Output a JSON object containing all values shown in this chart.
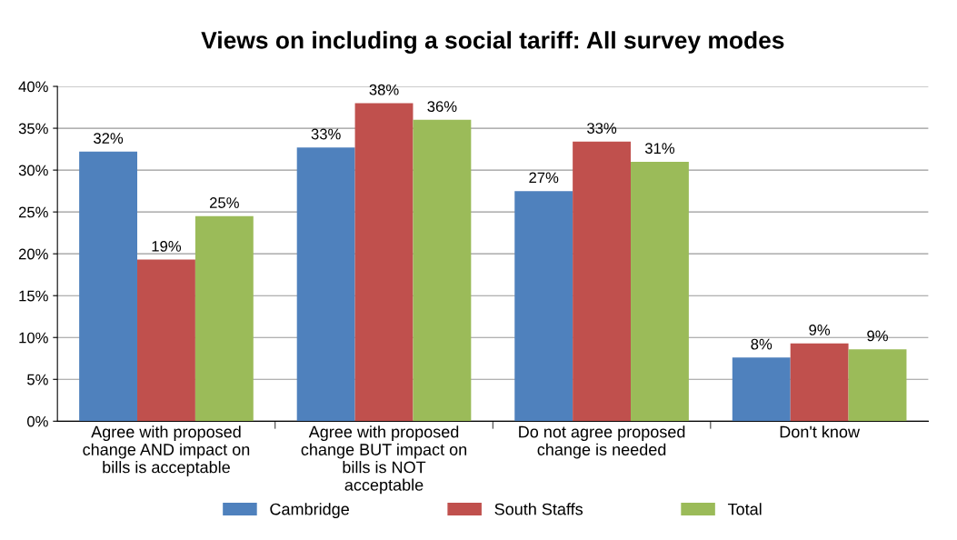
{
  "chart_data": {
    "type": "bar",
    "title": "Views on including a social tariff: All survey modes",
    "categories": [
      "Agree with proposed change AND impact on bills is acceptable",
      "Agree with proposed change BUT impact on bills is NOT acceptable",
      "Do not agree proposed change is needed",
      "Don't know"
    ],
    "series": [
      {
        "name": "Cambridge",
        "color": "#4f81bd",
        "values": [
          32.2,
          32.7,
          27.5,
          7.6
        ],
        "value_labels": [
          "32%",
          "33%",
          "27%",
          "8%"
        ]
      },
      {
        "name": "South Staffs",
        "color": "#c0504d",
        "values": [
          19.3,
          38.0,
          33.4,
          9.3
        ],
        "value_labels": [
          "19%",
          "38%",
          "33%",
          "9%"
        ]
      },
      {
        "name": "Total",
        "color": "#9bbb59",
        "values": [
          24.5,
          36.0,
          31.0,
          8.6
        ],
        "value_labels": [
          "25%",
          "36%",
          "31%",
          "9%"
        ]
      }
    ],
    "ylim": [
      0,
      40
    ],
    "yticks": [
      {
        "value": 0,
        "label": "0%"
      },
      {
        "value": 5,
        "label": "5%"
      },
      {
        "value": 10,
        "label": "10%"
      },
      {
        "value": 15,
        "label": "15%"
      },
      {
        "value": 20,
        "label": "20%"
      },
      {
        "value": 25,
        "label": "25%"
      },
      {
        "value": 30,
        "label": "30%"
      },
      {
        "value": 35,
        "label": "35%"
      },
      {
        "value": 40,
        "label": "40%"
      }
    ],
    "grid": "y",
    "legend": "bottom"
  }
}
